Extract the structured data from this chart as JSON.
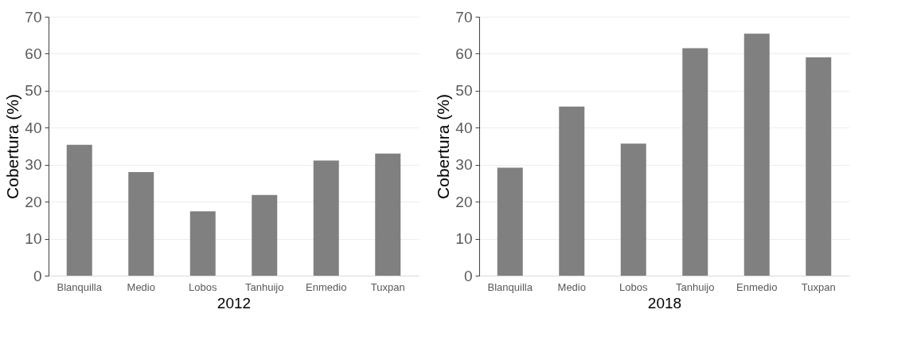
{
  "chart_data": [
    {
      "type": "bar",
      "xlabel": "2012",
      "ylabel": "Cobertura (%)",
      "categories": [
        "Blanquilla",
        "Medio",
        "Lobos",
        "Tanhuijo",
        "Enmedio",
        "Tuxpan"
      ],
      "values": [
        35.4,
        28.0,
        17.4,
        21.8,
        31.1,
        33.0
      ],
      "color": "#808080",
      "ylim": [
        0,
        70
      ],
      "yticks": [
        0,
        10,
        20,
        30,
        40,
        50,
        60,
        70
      ],
      "grid": "y"
    },
    {
      "type": "bar",
      "xlabel": "2018",
      "ylabel": "Cobertura (%)",
      "categories": [
        "Blanquilla",
        "Medio",
        "Lobos",
        "Tanhuijo",
        "Enmedio",
        "Tuxpan"
      ],
      "values": [
        29.2,
        45.7,
        35.7,
        61.5,
        65.4,
        59.0
      ],
      "color": "#808080",
      "ylim": [
        0,
        70
      ],
      "yticks": [
        0,
        10,
        20,
        30,
        40,
        50,
        60,
        70
      ],
      "grid": "y"
    }
  ]
}
